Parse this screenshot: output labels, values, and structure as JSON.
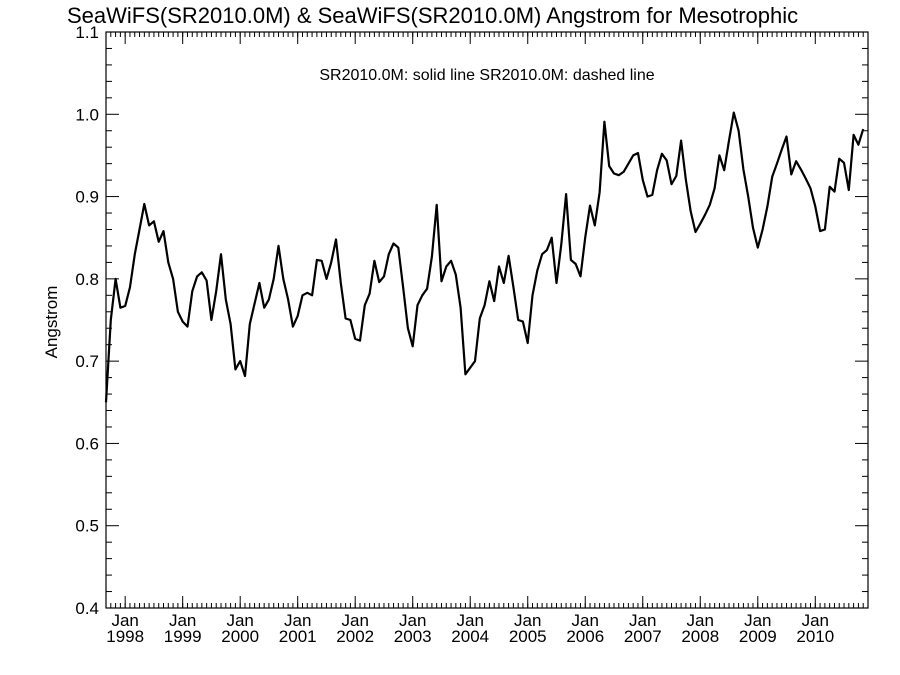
{
  "chart_data": {
    "type": "line",
    "title": "SeaWiFS(SR2010.0M) & SeaWiFS(SR2010.0M)  Angstrom for Mesotrophic",
    "annotation": "SR2010.0M: solid line   SR2010.0M: dashed line",
    "xlabel": "",
    "ylabel": "Angstrom",
    "ylim": [
      0.4,
      1.1
    ],
    "xlim": [
      "1997-09",
      "2010-12"
    ],
    "y_ticks": [
      "0.4",
      "0.5",
      "0.6",
      "0.7",
      "0.8",
      "0.9",
      "1.0",
      "1.1"
    ],
    "x_ticks": [
      {
        "month": "Jan",
        "year": "1998"
      },
      {
        "month": "Jan",
        "year": "1999"
      },
      {
        "month": "Jan",
        "year": "2000"
      },
      {
        "month": "Jan",
        "year": "2001"
      },
      {
        "month": "Jan",
        "year": "2002"
      },
      {
        "month": "Jan",
        "year": "2003"
      },
      {
        "month": "Jan",
        "year": "2004"
      },
      {
        "month": "Jan",
        "year": "2005"
      },
      {
        "month": "Jan",
        "year": "2006"
      },
      {
        "month": "Jan",
        "year": "2007"
      },
      {
        "month": "Jan",
        "year": "2008"
      },
      {
        "month": "Jan",
        "year": "2009"
      },
      {
        "month": "Jan",
        "year": "2010"
      }
    ],
    "grid": false,
    "series": [
      {
        "style": "solid",
        "color": "#000000",
        "start": "1997-09",
        "step": "month",
        "values": [
          0.65,
          0.75,
          0.8,
          0.765,
          0.767,
          0.79,
          0.83,
          0.86,
          0.891,
          0.865,
          0.87,
          0.845,
          0.858,
          0.82,
          0.8,
          0.76,
          0.748,
          0.742,
          0.785,
          0.803,
          0.808,
          0.798,
          0.75,
          0.785,
          0.83,
          0.775,
          0.745,
          0.69,
          0.7,
          0.682,
          0.745,
          0.77,
          0.795,
          0.765,
          0.775,
          0.8,
          0.84,
          0.8,
          0.775,
          0.742,
          0.755,
          0.78,
          0.783,
          0.78,
          0.823,
          0.822,
          0.8,
          0.82,
          0.848,
          0.795,
          0.752,
          0.75,
          0.727,
          0.725,
          0.768,
          0.782,
          0.822,
          0.796,
          0.803,
          0.83,
          0.843,
          0.838,
          0.79,
          0.74,
          0.718,
          0.768,
          0.78,
          0.788,
          0.827,
          0.89,
          0.797,
          0.815,
          0.822,
          0.805,
          0.765,
          0.684,
          0.692,
          0.7,
          0.752,
          0.768,
          0.797,
          0.773,
          0.815,
          0.795,
          0.828,
          0.79,
          0.75,
          0.748,
          0.722,
          0.78,
          0.81,
          0.83,
          0.835,
          0.85,
          0.795,
          0.842,
          0.903,
          0.823,
          0.818,
          0.803,
          0.85,
          0.889,
          0.865,
          0.905,
          0.991,
          0.937,
          0.928,
          0.926,
          0.93,
          0.94,
          0.95,
          0.953,
          0.92,
          0.9,
          0.902,
          0.932,
          0.952,
          0.944,
          0.915,
          0.925,
          0.968,
          0.92,
          0.882,
          0.857,
          0.867,
          0.878,
          0.89,
          0.91,
          0.95,
          0.932,
          0.968,
          1.002,
          0.98,
          0.933,
          0.9,
          0.862,
          0.838,
          0.86,
          0.888,
          0.924,
          0.94,
          0.957,
          0.973,
          0.927,
          0.943,
          0.933,
          0.922,
          0.91,
          0.888,
          0.858,
          0.86,
          0.912,
          0.906,
          0.946,
          0.941,
          0.908,
          0.975,
          0.963,
          0.982
        ]
      }
    ]
  }
}
